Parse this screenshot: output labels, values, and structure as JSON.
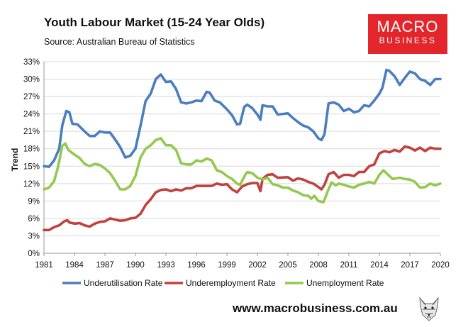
{
  "header": {
    "title": "Youth Labour Market (15-24 Year Olds)",
    "source": "Source: Australian Bureau of Statistics"
  },
  "logo": {
    "line1": "MACRO",
    "line2": "BUSINESS"
  },
  "footer": {
    "url": "www.macrobusiness.com.au"
  },
  "colors": {
    "underutilisation": "#4a7ebf",
    "underemployment": "#c0423e",
    "unemployment": "#93c94e",
    "logo_bg": "#e3262c"
  },
  "chart_data": {
    "type": "line",
    "title": "Youth Labour Market (15-24 Year Olds)",
    "ylabel": "Trend",
    "xlabel": "",
    "xlim": [
      1981,
      2020
    ],
    "ylim": [
      0,
      33
    ],
    "yticks": [
      "0%",
      "3%",
      "6%",
      "9%",
      "12%",
      "15%",
      "18%",
      "21%",
      "24%",
      "27%",
      "30%",
      "33%"
    ],
    "xticks": [
      "1981",
      "1984",
      "1987",
      "1990",
      "1993",
      "1996",
      "1999",
      "2002",
      "2005",
      "2008",
      "2011",
      "2014",
      "2017",
      "2020"
    ],
    "grid": true,
    "legend": "bottom",
    "series": [
      {
        "name": "Underutilisation Rate",
        "color": "#4a7ebf",
        "points": [
          [
            1981,
            15
          ],
          [
            1981.5,
            14.9
          ],
          [
            1982,
            16
          ],
          [
            1982.5,
            18
          ],
          [
            1982.8,
            22
          ],
          [
            1983.2,
            24.5
          ],
          [
            1983.5,
            24.3
          ],
          [
            1983.8,
            22.3
          ],
          [
            1984.3,
            22.2
          ],
          [
            1985,
            21
          ],
          [
            1985.5,
            20.2
          ],
          [
            1986,
            20.2
          ],
          [
            1986.5,
            21
          ],
          [
            1987,
            20.8
          ],
          [
            1987.5,
            20.8
          ],
          [
            1988,
            19.6
          ],
          [
            1988.5,
            18.3
          ],
          [
            1989,
            16.5
          ],
          [
            1989.5,
            16.8
          ],
          [
            1990,
            18
          ],
          [
            1990.5,
            22
          ],
          [
            1991,
            26.2
          ],
          [
            1991.5,
            27.5
          ],
          [
            1992,
            30
          ],
          [
            1992.5,
            30.8
          ],
          [
            1993,
            29.5
          ],
          [
            1993.5,
            29.6
          ],
          [
            1994,
            28.3
          ],
          [
            1994.5,
            26
          ],
          [
            1995,
            25.8
          ],
          [
            1995.5,
            26
          ],
          [
            1996,
            26.3
          ],
          [
            1996.5,
            26.2
          ],
          [
            1997,
            27.8
          ],
          [
            1997.3,
            27.7
          ],
          [
            1997.8,
            26.3
          ],
          [
            1998.3,
            26
          ],
          [
            1999,
            24.8
          ],
          [
            1999.5,
            23.8
          ],
          [
            2000,
            22.2
          ],
          [
            2000.3,
            22.3
          ],
          [
            2000.7,
            25.2
          ],
          [
            2001,
            25.6
          ],
          [
            2001.5,
            25
          ],
          [
            2002,
            23.9
          ],
          [
            2002.3,
            23
          ],
          [
            2002.5,
            25.5
          ],
          [
            2003,
            25.3
          ],
          [
            2003.5,
            25.3
          ],
          [
            2004,
            23.9
          ],
          [
            2004.5,
            24
          ],
          [
            2005,
            24.1
          ],
          [
            2005.5,
            23.3
          ],
          [
            2006,
            22.6
          ],
          [
            2006.5,
            22
          ],
          [
            2007,
            21.7
          ],
          [
            2007.5,
            21
          ],
          [
            2008,
            19.8
          ],
          [
            2008.3,
            19.5
          ],
          [
            2008.6,
            20.5
          ],
          [
            2009,
            25.8
          ],
          [
            2009.5,
            26
          ],
          [
            2010,
            25.6
          ],
          [
            2010.5,
            24.5
          ],
          [
            2011,
            24.9
          ],
          [
            2011.5,
            24.3
          ],
          [
            2012,
            24.5
          ],
          [
            2012.5,
            25.5
          ],
          [
            2013,
            25.3
          ],
          [
            2013.5,
            26.3
          ],
          [
            2014,
            27.5
          ],
          [
            2014.3,
            28.5
          ],
          [
            2014.7,
            31.6
          ],
          [
            2015,
            31.4
          ],
          [
            2015.5,
            30.5
          ],
          [
            2016,
            29
          ],
          [
            2016.5,
            30.2
          ],
          [
            2017,
            31.3
          ],
          [
            2017.5,
            31
          ],
          [
            2018,
            30
          ],
          [
            2018.5,
            29.7
          ],
          [
            2019,
            29
          ],
          [
            2019.5,
            30
          ],
          [
            2020,
            30
          ]
        ]
      },
      {
        "name": "Underemployment Rate",
        "color": "#c0423e",
        "points": [
          [
            1981,
            4
          ],
          [
            1981.5,
            4
          ],
          [
            1982,
            4.5
          ],
          [
            1982.5,
            4.8
          ],
          [
            1983,
            5.5
          ],
          [
            1983.3,
            5.7
          ],
          [
            1983.5,
            5.3
          ],
          [
            1984,
            5.1
          ],
          [
            1984.5,
            5.2
          ],
          [
            1985,
            4.8
          ],
          [
            1985.5,
            4.6
          ],
          [
            1986,
            5.1
          ],
          [
            1986.5,
            5.4
          ],
          [
            1987,
            5.5
          ],
          [
            1987.5,
            6
          ],
          [
            1988,
            5.8
          ],
          [
            1988.5,
            5.6
          ],
          [
            1989,
            5.7
          ],
          [
            1989.5,
            6
          ],
          [
            1990,
            6.1
          ],
          [
            1990.5,
            6.8
          ],
          [
            1991,
            8.3
          ],
          [
            1991.5,
            9.3
          ],
          [
            1992,
            10.5
          ],
          [
            1992.5,
            10.9
          ],
          [
            1993,
            11
          ],
          [
            1993.5,
            10.7
          ],
          [
            1994,
            11
          ],
          [
            1994.5,
            10.8
          ],
          [
            1995,
            11.2
          ],
          [
            1995.5,
            11.2
          ],
          [
            1996,
            11.6
          ],
          [
            1996.5,
            11.6
          ],
          [
            1997,
            11.6
          ],
          [
            1997.5,
            11.6
          ],
          [
            1998,
            12
          ],
          [
            1998.5,
            11.8
          ],
          [
            1999,
            11.9
          ],
          [
            1999.5,
            11
          ],
          [
            2000,
            10.5
          ],
          [
            2000.5,
            11.5
          ],
          [
            2001,
            11.9
          ],
          [
            2001.5,
            12.1
          ],
          [
            2002,
            12.1
          ],
          [
            2002.3,
            10.7
          ],
          [
            2002.5,
            12.8
          ],
          [
            2003,
            13.5
          ],
          [
            2003.5,
            13.6
          ],
          [
            2004,
            13
          ],
          [
            2005,
            13.1
          ],
          [
            2005.5,
            12.5
          ],
          [
            2006,
            12.9
          ],
          [
            2006.5,
            12.7
          ],
          [
            2007,
            12.3
          ],
          [
            2007.5,
            12
          ],
          [
            2008,
            11.4
          ],
          [
            2008.3,
            11
          ],
          [
            2008.6,
            11.8
          ],
          [
            2009,
            13.6
          ],
          [
            2009.5,
            14
          ],
          [
            2010,
            13
          ],
          [
            2010.5,
            13.5
          ],
          [
            2011,
            13.5
          ],
          [
            2011.5,
            13.3
          ],
          [
            2012,
            14
          ],
          [
            2012.5,
            14
          ],
          [
            2013,
            15
          ],
          [
            2013.5,
            15.3
          ],
          [
            2014,
            17.2
          ],
          [
            2014.5,
            17.6
          ],
          [
            2015,
            17.4
          ],
          [
            2015.5,
            17.8
          ],
          [
            2016,
            17.5
          ],
          [
            2016.5,
            18.4
          ],
          [
            2017,
            18.2
          ],
          [
            2017.5,
            17.7
          ],
          [
            2018,
            18.2
          ],
          [
            2018.5,
            17.6
          ],
          [
            2019,
            18.2
          ],
          [
            2019.5,
            18
          ],
          [
            2020,
            18
          ]
        ]
      },
      {
        "name": "Unemployment Rate",
        "color": "#93c94e",
        "points": [
          [
            1981,
            11
          ],
          [
            1981.5,
            11.3
          ],
          [
            1982,
            12.4
          ],
          [
            1982.4,
            15
          ],
          [
            1982.8,
            18.5
          ],
          [
            1983.1,
            18.9
          ],
          [
            1983.4,
            17.8
          ],
          [
            1984,
            17
          ],
          [
            1984.5,
            16.4
          ],
          [
            1985,
            15.4
          ],
          [
            1985.5,
            15
          ],
          [
            1986,
            15.4
          ],
          [
            1986.5,
            15.2
          ],
          [
            1987,
            14.6
          ],
          [
            1987.5,
            13.8
          ],
          [
            1988,
            12.5
          ],
          [
            1988.5,
            11
          ],
          [
            1989,
            11
          ],
          [
            1989.5,
            11.6
          ],
          [
            1990,
            13.3
          ],
          [
            1990.5,
            16.5
          ],
          [
            1991,
            18
          ],
          [
            1991.5,
            18.6
          ],
          [
            1992,
            19.5
          ],
          [
            1992.5,
            19.8
          ],
          [
            1993,
            18.6
          ],
          [
            1993.5,
            18.6
          ],
          [
            1994,
            17.8
          ],
          [
            1994.5,
            15.5
          ],
          [
            1995,
            15.3
          ],
          [
            1995.5,
            15.3
          ],
          [
            1996,
            16
          ],
          [
            1996.5,
            15.8
          ],
          [
            1997,
            16.3
          ],
          [
            1997.5,
            16
          ],
          [
            1998,
            14.3
          ],
          [
            1998.5,
            14
          ],
          [
            1999,
            13.3
          ],
          [
            1999.5,
            12.8
          ],
          [
            2000,
            12
          ],
          [
            2000.3,
            11.8
          ],
          [
            2000.8,
            13.5
          ],
          [
            2001,
            14
          ],
          [
            2001.5,
            13.8
          ],
          [
            2002,
            13
          ],
          [
            2002.5,
            12.7
          ],
          [
            2003,
            13
          ],
          [
            2003.5,
            11.9
          ],
          [
            2004,
            11.7
          ],
          [
            2004.5,
            11.3
          ],
          [
            2005,
            11.3
          ],
          [
            2005.5,
            10.8
          ],
          [
            2006,
            10.5
          ],
          [
            2006.5,
            10
          ],
          [
            2007,
            9.9
          ],
          [
            2007.3,
            9.4
          ],
          [
            2007.6,
            9.9
          ],
          [
            2008,
            9
          ],
          [
            2008.5,
            8.8
          ],
          [
            2009,
            11
          ],
          [
            2009.3,
            12.2
          ],
          [
            2009.7,
            11.7
          ],
          [
            2010,
            12
          ],
          [
            2010.5,
            11.8
          ],
          [
            2011,
            11.5
          ],
          [
            2011.5,
            11.3
          ],
          [
            2012,
            11.8
          ],
          [
            2012.5,
            12
          ],
          [
            2013,
            12.3
          ],
          [
            2013.5,
            12
          ],
          [
            2014,
            13.5
          ],
          [
            2014.4,
            14.3
          ],
          [
            2014.8,
            13.6
          ],
          [
            2015.3,
            12.8
          ],
          [
            2016,
            13
          ],
          [
            2016.5,
            12.8
          ],
          [
            2017,
            12.7
          ],
          [
            2017.5,
            12.3
          ],
          [
            2018,
            11.3
          ],
          [
            2018.5,
            11.4
          ],
          [
            2019,
            12
          ],
          [
            2019.5,
            11.7
          ],
          [
            2020,
            12
          ]
        ]
      }
    ]
  }
}
